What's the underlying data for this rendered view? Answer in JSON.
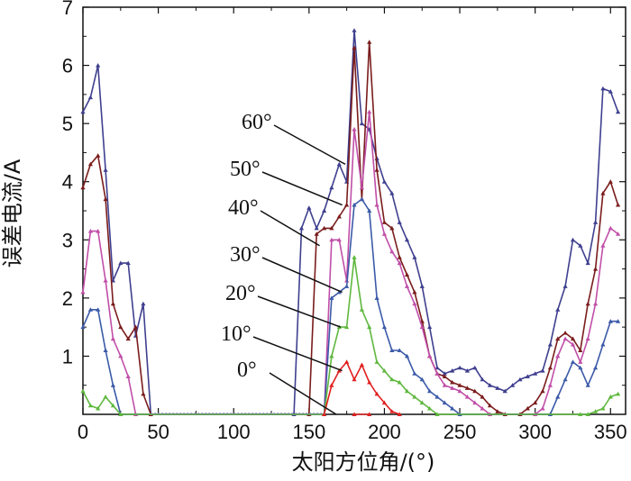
{
  "chart_data": {
    "type": "line",
    "xlabel": "太阳方位角/(°)",
    "ylabel": "误差电流/A",
    "xlim": [
      0,
      360
    ],
    "ylim": [
      0,
      7
    ],
    "x_ticks": [
      0,
      50,
      100,
      150,
      200,
      250,
      300,
      350
    ],
    "y_ticks": [
      1,
      2,
      3,
      4,
      5,
      6,
      7
    ],
    "grid": false,
    "legend": "none",
    "series": [
      {
        "name": "60°",
        "color": "#3f3f8f",
        "points": [
          [
            0,
            5.2
          ],
          [
            5,
            5.45
          ],
          [
            10,
            6.0
          ],
          [
            15,
            4.2
          ],
          [
            20,
            2.3
          ],
          [
            25,
            2.6
          ],
          [
            30,
            2.6
          ],
          [
            35,
            1.35
          ],
          [
            40,
            1.9
          ],
          [
            45,
            0
          ],
          [
            140,
            0
          ],
          [
            145,
            3.2
          ],
          [
            150,
            3.55
          ],
          [
            155,
            3.2
          ],
          [
            160,
            3.5
          ],
          [
            165,
            3.9
          ],
          [
            170,
            4.3
          ],
          [
            175,
            4.0
          ],
          [
            180,
            6.6
          ],
          [
            185,
            5.0
          ],
          [
            190,
            4.9
          ],
          [
            195,
            4.4
          ],
          [
            200,
            4.0
          ],
          [
            205,
            3.8
          ],
          [
            210,
            3.3
          ],
          [
            215,
            3.0
          ],
          [
            220,
            2.7
          ],
          [
            225,
            2.2
          ],
          [
            230,
            1.5
          ],
          [
            235,
            0.8
          ],
          [
            240,
            0.7
          ],
          [
            245,
            0.75
          ],
          [
            250,
            0.8
          ],
          [
            255,
            0.75
          ],
          [
            260,
            0.8
          ],
          [
            265,
            0.6
          ],
          [
            270,
            0.5
          ],
          [
            275,
            0.45
          ],
          [
            280,
            0.4
          ],
          [
            285,
            0.5
          ],
          [
            290,
            0.6
          ],
          [
            295,
            0.65
          ],
          [
            300,
            0.7
          ],
          [
            305,
            0.75
          ],
          [
            310,
            1.2
          ],
          [
            315,
            1.8
          ],
          [
            320,
            2.2
          ],
          [
            325,
            3.0
          ],
          [
            330,
            2.9
          ],
          [
            335,
            2.6
          ],
          [
            340,
            3.3
          ],
          [
            345,
            5.6
          ],
          [
            350,
            5.55
          ],
          [
            355,
            5.2
          ]
        ]
      },
      {
        "name": "50°",
        "color": "#7a1c1c",
        "points": [
          [
            0,
            3.9
          ],
          [
            5,
            4.3
          ],
          [
            10,
            4.45
          ],
          [
            15,
            3.7
          ],
          [
            20,
            1.9
          ],
          [
            25,
            1.5
          ],
          [
            30,
            1.3
          ],
          [
            35,
            1.5
          ],
          [
            40,
            0.35
          ],
          [
            45,
            0
          ],
          [
            150,
            0
          ],
          [
            155,
            3.1
          ],
          [
            160,
            3.2
          ],
          [
            165,
            3.2
          ],
          [
            170,
            3.4
          ],
          [
            175,
            3.6
          ],
          [
            180,
            6.3
          ],
          [
            185,
            3.7
          ],
          [
            190,
            6.4
          ],
          [
            195,
            4.2
          ],
          [
            200,
            3.3
          ],
          [
            205,
            3.2
          ],
          [
            210,
            2.7
          ],
          [
            215,
            2.4
          ],
          [
            220,
            2.1
          ],
          [
            225,
            1.6
          ],
          [
            230,
            1.0
          ],
          [
            235,
            0.7
          ],
          [
            240,
            0.65
          ],
          [
            245,
            0.55
          ],
          [
            250,
            0.5
          ],
          [
            255,
            0.45
          ],
          [
            260,
            0.4
          ],
          [
            265,
            0.3
          ],
          [
            270,
            0.15
          ],
          [
            275,
            0.05
          ],
          [
            280,
            0.0
          ],
          [
            290,
            0.0
          ],
          [
            295,
            0.1
          ],
          [
            300,
            0.2
          ],
          [
            305,
            0.4
          ],
          [
            310,
            0.8
          ],
          [
            315,
            1.3
          ],
          [
            320,
            1.4
          ],
          [
            325,
            1.3
          ],
          [
            330,
            1.1
          ],
          [
            335,
            1.9
          ],
          [
            340,
            2.5
          ],
          [
            345,
            3.8
          ],
          [
            350,
            4.0
          ],
          [
            355,
            3.6
          ]
        ]
      },
      {
        "name": "40°",
        "color": "#c04fa8",
        "points": [
          [
            0,
            2.1
          ],
          [
            5,
            3.15
          ],
          [
            10,
            3.15
          ],
          [
            15,
            2.3
          ],
          [
            20,
            1.3
          ],
          [
            25,
            1.0
          ],
          [
            30,
            0.65
          ],
          [
            35,
            0.0
          ],
          [
            160,
            0
          ],
          [
            165,
            3.0
          ],
          [
            170,
            3.0
          ],
          [
            175,
            2.3
          ],
          [
            180,
            4.9
          ],
          [
            185,
            3.9
          ],
          [
            190,
            5.2
          ],
          [
            195,
            3.6
          ],
          [
            200,
            3.1
          ],
          [
            205,
            2.8
          ],
          [
            210,
            2.6
          ],
          [
            215,
            2.2
          ],
          [
            220,
            1.9
          ],
          [
            225,
            1.5
          ],
          [
            230,
            1.0
          ],
          [
            235,
            0.7
          ],
          [
            240,
            0.5
          ],
          [
            245,
            0.45
          ],
          [
            250,
            0.4
          ],
          [
            255,
            0.3
          ],
          [
            260,
            0.2
          ],
          [
            265,
            0.1
          ],
          [
            270,
            0.0
          ],
          [
            300,
            0.0
          ],
          [
            305,
            0.1
          ],
          [
            310,
            0.5
          ],
          [
            315,
            1.0
          ],
          [
            320,
            1.3
          ],
          [
            325,
            1.2
          ],
          [
            330,
            0.9
          ],
          [
            335,
            1.3
          ],
          [
            340,
            1.9
          ],
          [
            345,
            2.9
          ],
          [
            350,
            3.2
          ],
          [
            355,
            3.1
          ]
        ]
      },
      {
        "name": "30°",
        "color": "#3b5aa8",
        "points": [
          [
            0,
            1.5
          ],
          [
            5,
            1.8
          ],
          [
            10,
            1.8
          ],
          [
            15,
            1.1
          ],
          [
            20,
            0.5
          ],
          [
            25,
            0.0
          ],
          [
            160,
            0
          ],
          [
            165,
            2.0
          ],
          [
            170,
            2.1
          ],
          [
            175,
            2.2
          ],
          [
            180,
            3.6
          ],
          [
            185,
            3.7
          ],
          [
            190,
            3.5
          ],
          [
            195,
            2.0
          ],
          [
            200,
            1.5
          ],
          [
            205,
            1.1
          ],
          [
            210,
            1.1
          ],
          [
            215,
            1.0
          ],
          [
            220,
            0.7
          ],
          [
            225,
            0.6
          ],
          [
            230,
            0.4
          ],
          [
            235,
            0.3
          ],
          [
            240,
            0.2
          ],
          [
            245,
            0.1
          ],
          [
            250,
            0.0
          ],
          [
            310,
            0.0
          ],
          [
            315,
            0.3
          ],
          [
            320,
            0.6
          ],
          [
            325,
            0.9
          ],
          [
            330,
            0.8
          ],
          [
            335,
            0.5
          ],
          [
            340,
            0.8
          ],
          [
            345,
            1.2
          ],
          [
            350,
            1.6
          ],
          [
            355,
            1.6
          ]
        ]
      },
      {
        "name": "20°",
        "color": "#5fb83e",
        "points": [
          [
            0,
            0.4
          ],
          [
            5,
            0.15
          ],
          [
            10,
            0.1
          ],
          [
            15,
            0.3
          ],
          [
            20,
            0.15
          ],
          [
            25,
            0.0
          ],
          [
            160,
            0
          ],
          [
            165,
            1.0
          ],
          [
            170,
            1.5
          ],
          [
            175,
            1.5
          ],
          [
            180,
            2.7
          ],
          [
            185,
            1.8
          ],
          [
            190,
            1.5
          ],
          [
            195,
            0.9
          ],
          [
            200,
            0.75
          ],
          [
            205,
            0.6
          ],
          [
            210,
            0.55
          ],
          [
            215,
            0.4
          ],
          [
            220,
            0.3
          ],
          [
            225,
            0.2
          ],
          [
            230,
            0.1
          ],
          [
            235,
            0.0
          ],
          [
            330,
            0.0
          ],
          [
            335,
            0.0
          ],
          [
            340,
            0.05
          ],
          [
            345,
            0.1
          ],
          [
            350,
            0.3
          ],
          [
            355,
            0.35
          ]
        ]
      },
      {
        "name": "10°",
        "color": "#e02020",
        "points": [
          [
            160,
            0
          ],
          [
            165,
            0.5
          ],
          [
            170,
            0.75
          ],
          [
            175,
            0.9
          ],
          [
            180,
            0.6
          ],
          [
            185,
            0.85
          ],
          [
            190,
            0.55
          ],
          [
            195,
            0.35
          ],
          [
            200,
            0.2
          ],
          [
            205,
            0.05
          ],
          [
            210,
            0.0
          ]
        ]
      },
      {
        "name": "0°",
        "color": "#e02020",
        "points": [
          [
            180,
            0.0
          ],
          [
            190,
            0.0
          ]
        ]
      }
    ],
    "annotations": [
      {
        "text": "60°",
        "target": [
          174,
          4.3
        ]
      },
      {
        "text": "50°",
        "target": [
          172,
          3.6
        ]
      },
      {
        "text": "40°",
        "target": [
          157,
          2.9
        ]
      },
      {
        "text": "30°",
        "target": [
          172,
          2.1
        ]
      },
      {
        "text": "20°",
        "target": [
          171,
          1.5
        ]
      },
      {
        "text": "10°",
        "target": [
          172,
          0.75
        ]
      },
      {
        "text": "0°",
        "target": [
          168,
          0.0
        ]
      }
    ]
  }
}
